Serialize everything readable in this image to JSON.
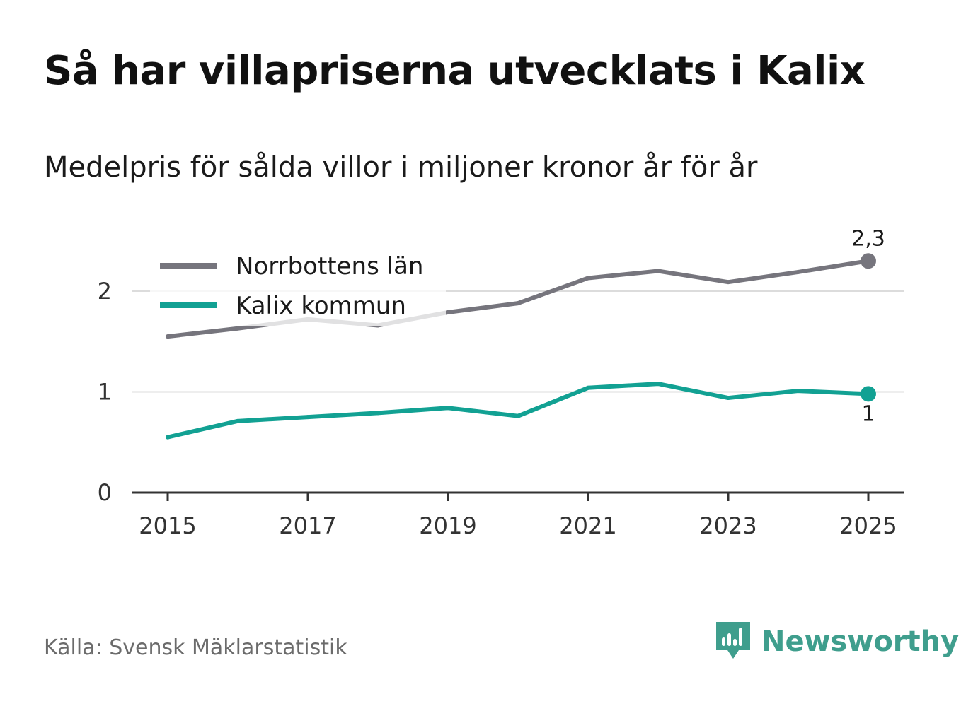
{
  "title": "Så har villapriserna utvecklats i Kalix",
  "subtitle": "Medelpris för sålda villor i miljoner kronor år för år",
  "source": "Källa: Svensk Mäklarstatistik",
  "brand": {
    "name": "Newsworthy",
    "icon": "newsworthy-logo-icon",
    "color": "#3f9e8d"
  },
  "chart_data": {
    "type": "line",
    "title": "Så har villapriserna utvecklats i Kalix",
    "subtitle": "Medelpris för sålda villor i miljoner kronor år för år",
    "xlabel": "",
    "ylabel": "",
    "x": [
      2015,
      2016,
      2017,
      2018,
      2019,
      2020,
      2021,
      2022,
      2023,
      2024,
      2025
    ],
    "xticks": [
      2015,
      2017,
      2019,
      2021,
      2023,
      2025
    ],
    "xtick_labels": [
      "2015",
      "2017",
      "2019",
      "2021",
      "2023",
      "2025"
    ],
    "yticks": [
      0,
      1,
      2
    ],
    "ytick_labels": [
      "0",
      "1",
      "2"
    ],
    "xlim": [
      2014.5,
      2025.5
    ],
    "ylim": [
      0,
      2.5
    ],
    "grid": true,
    "legend_position": "top-left",
    "series": [
      {
        "name": "Norrbottens län",
        "color": "#76757d",
        "values": [
          1.55,
          1.63,
          1.72,
          1.66,
          1.79,
          1.88,
          2.13,
          2.2,
          2.09,
          2.19,
          2.3
        ],
        "end_label": "2,3"
      },
      {
        "name": "Kalix kommun",
        "color": "#12a193",
        "values": [
          0.55,
          0.71,
          0.75,
          0.79,
          0.84,
          0.76,
          1.04,
          1.08,
          0.94,
          1.01,
          0.98
        ],
        "end_label": "1"
      }
    ]
  }
}
